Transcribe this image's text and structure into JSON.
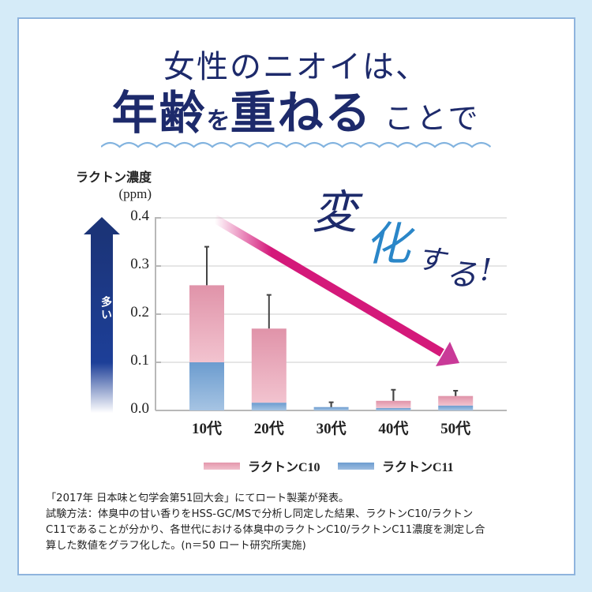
{
  "title": {
    "line1": "女性のニオイは、",
    "line2": [
      {
        "text": "年齢",
        "style": "big"
      },
      {
        "text": "を",
        "style": "small"
      },
      {
        "text": "重ねる",
        "style": "big"
      },
      {
        "text": " ことで",
        "style": "plain"
      }
    ]
  },
  "headline_overlay": {
    "char1": "変",
    "char2": "化",
    "char3": "す",
    "char4": "る",
    "char5": "!"
  },
  "arrow_label": "多い",
  "colors": {
    "background": "#d5ebf8",
    "frame_border": "#8fb4dd",
    "title": "#1d2a6b",
    "c10": "#e497ac",
    "c11": "#78a6d4",
    "trend_arrow": "#d4197a",
    "up_arrow": "#1b3a8a"
  },
  "chart_data": {
    "type": "bar",
    "stacked": true,
    "title": "",
    "ylabel": "ラクトン濃度",
    "ylabel_unit": "(ppm)",
    "xlabel": "",
    "ylim": [
      0,
      0.4
    ],
    "yticks": [
      "0.0",
      "0.1",
      "0.2",
      "0.3",
      "0.4"
    ],
    "grid": true,
    "legend_position": "bottom",
    "categories": [
      "10代",
      "20代",
      "30代",
      "40代",
      "50代"
    ],
    "series": [
      {
        "name": "ラクトンC11",
        "color": "#78a6d4",
        "values": [
          0.1,
          0.016,
          0.007,
          0.005,
          0.01
        ]
      },
      {
        "name": "ラクトンC10",
        "color": "#e497ac",
        "values": [
          0.16,
          0.154,
          0.0,
          0.015,
          0.02
        ]
      }
    ],
    "totals": [
      0.26,
      0.17,
      0.007,
      0.02,
      0.03
    ],
    "error_bar_tops": [
      0.34,
      0.24,
      0.017,
      0.043,
      0.041
    ],
    "annotations": [
      "変化する!",
      "多い"
    ]
  },
  "legend": [
    {
      "label": "ラクトンC10",
      "color": "#e497ac"
    },
    {
      "label": "ラクトンC11",
      "color": "#78a6d4"
    }
  ],
  "note": {
    "lines": [
      "「2017年 日本味と匂学会第51回大会」にてロート製薬が発表。",
      "試験方法：体臭中の甘い香りをHSS-GC/MSで分析し同定した結果、ラクトンC10/ラクトン",
      "C11であることが分かり、各世代における体臭中のラクトンC10/ラクトンC11濃度を測定し合",
      "算した数値をグラフ化した。(n＝50 ロート研究所実施)"
    ]
  }
}
